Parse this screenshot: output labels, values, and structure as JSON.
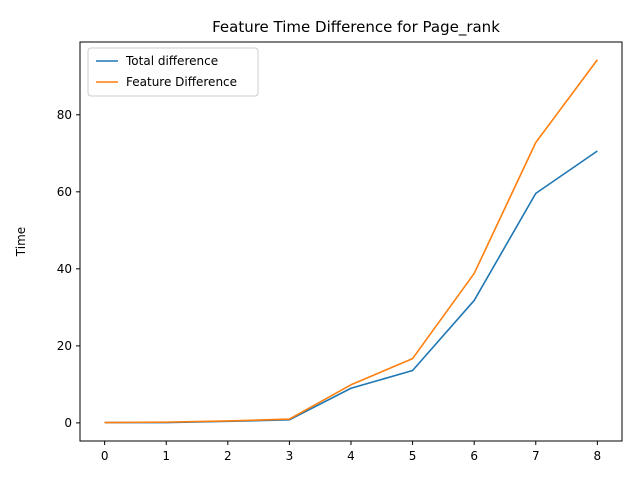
{
  "chart_data": {
    "type": "line",
    "title": "Feature Time Difference for Page_rank",
    "xlabel": "",
    "ylabel": "Time",
    "x": [
      0,
      1,
      2,
      3,
      4,
      5,
      6,
      7,
      8
    ],
    "xlim": [
      -0.4,
      8.4
    ],
    "ylim": [
      -4.7,
      98.9
    ],
    "xticks": [
      0,
      1,
      2,
      3,
      4,
      5,
      6,
      7,
      8
    ],
    "yticks": [
      0,
      20,
      40,
      60,
      80
    ],
    "grid": false,
    "legend_position": "top-left",
    "series": [
      {
        "name": "Total difference",
        "color": "#1f77b4",
        "values": [
          0.1,
          0.1,
          0.4,
          0.8,
          9.0,
          13.6,
          31.8,
          59.6,
          70.6
        ]
      },
      {
        "name": "Feature Difference",
        "color": "#ff7f0e",
        "values": [
          0.1,
          0.2,
          0.5,
          1.0,
          9.9,
          16.7,
          38.8,
          72.8,
          94.3
        ]
      }
    ]
  }
}
